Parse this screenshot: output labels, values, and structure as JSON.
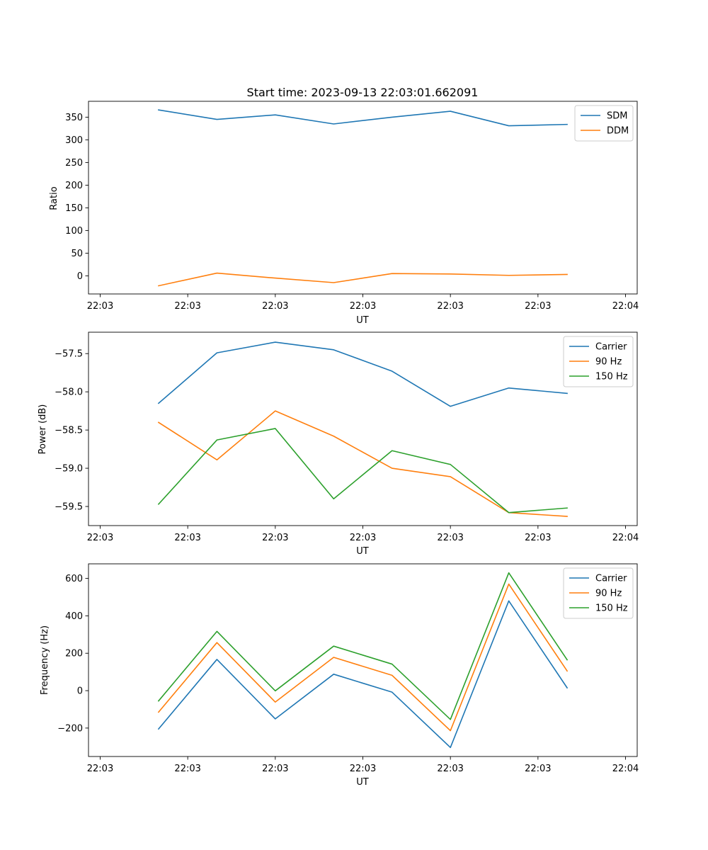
{
  "chart_data": [
    {
      "type": "line",
      "title": "Start time: 2023-09-13 22:03:01.662091",
      "xlabel": "UT",
      "ylabel": "Ratio",
      "x": [
        0.5,
        1.0,
        1.5,
        2.0,
        2.5,
        3.0,
        3.5,
        4.0
      ],
      "xlim": [
        -0.1,
        4.6
      ],
      "xticks": [
        0,
        0.75,
        1.5,
        2.25,
        3.0,
        3.75,
        4.5
      ],
      "xtick_labels": [
        "22:03",
        "22:03",
        "22:03",
        "22:03",
        "22:03",
        "22:03",
        "22:04"
      ],
      "ylim": [
        -40,
        385
      ],
      "yticks": [
        0,
        50,
        100,
        150,
        200,
        250,
        300,
        350
      ],
      "ytick_labels": [
        "0",
        "50",
        "100",
        "150",
        "200",
        "250",
        "300",
        "350"
      ],
      "legend_position": "top-right",
      "series": [
        {
          "name": "SDM",
          "color": "#1f77b4",
          "values": [
            366,
            345,
            355,
            335,
            350,
            363,
            331,
            334
          ]
        },
        {
          "name": "DDM",
          "color": "#ff7f0e",
          "values": [
            -22,
            6,
            -5,
            -15,
            5,
            4,
            1,
            3
          ]
        }
      ]
    },
    {
      "type": "line",
      "title": "",
      "xlabel": "UT",
      "ylabel": "Power (dB)",
      "x": [
        0.5,
        1.0,
        1.5,
        2.0,
        2.5,
        3.0,
        3.5,
        4.0
      ],
      "xlim": [
        -0.1,
        4.6
      ],
      "xticks": [
        0,
        0.75,
        1.5,
        2.25,
        3.0,
        3.75,
        4.5
      ],
      "xtick_labels": [
        "22:03",
        "22:03",
        "22:03",
        "22:03",
        "22:03",
        "22:03",
        "22:04"
      ],
      "ylim": [
        -59.75,
        -57.22
      ],
      "yticks": [
        -59.5,
        -59.0,
        -58.5,
        -58.0,
        -57.5
      ],
      "ytick_labels": [
        "−59.5",
        "−59.0",
        "−58.5",
        "−58.0",
        "−57.5"
      ],
      "legend_position": "top-right",
      "series": [
        {
          "name": "Carrier",
          "color": "#1f77b4",
          "values": [
            -58.15,
            -57.49,
            -57.35,
            -57.45,
            -57.73,
            -58.19,
            -57.95,
            -58.02
          ]
        },
        {
          "name": "90 Hz",
          "color": "#ff7f0e",
          "values": [
            -58.4,
            -58.89,
            -58.25,
            -58.58,
            -59.0,
            -59.11,
            -59.58,
            -59.63
          ]
        },
        {
          "name": "150 Hz",
          "color": "#2ca02c",
          "values": [
            -59.47,
            -58.63,
            -58.48,
            -59.4,
            -58.77,
            -58.95,
            -59.58,
            -59.52
          ]
        }
      ]
    },
    {
      "type": "line",
      "title": "",
      "xlabel": "UT",
      "ylabel": "Frequency (Hz)",
      "x": [
        0.5,
        1.0,
        1.5,
        2.0,
        2.5,
        3.0,
        3.5,
        4.0
      ],
      "xlim": [
        -0.1,
        4.6
      ],
      "xticks": [
        0,
        0.75,
        1.5,
        2.25,
        3.0,
        3.75,
        4.5
      ],
      "xtick_labels": [
        "22:03",
        "22:03",
        "22:03",
        "22:03",
        "22:03",
        "22:03",
        "22:04"
      ],
      "ylim": [
        -352,
        678
      ],
      "yticks": [
        -200,
        0,
        200,
        400,
        600
      ],
      "ytick_labels": [
        "−200",
        "0",
        "200",
        "400",
        "600"
      ],
      "legend_position": "top-right",
      "series": [
        {
          "name": "Carrier",
          "color": "#1f77b4",
          "values": [
            -205,
            167,
            -151,
            88,
            -8,
            -304,
            480,
            15
          ]
        },
        {
          "name": "90 Hz",
          "color": "#ff7f0e",
          "values": [
            -115,
            257,
            -61,
            178,
            82,
            -214,
            570,
            105
          ]
        },
        {
          "name": "150 Hz",
          "color": "#2ca02c",
          "values": [
            -55,
            317,
            -1,
            238,
            142,
            -154,
            630,
            165
          ]
        }
      ]
    }
  ]
}
